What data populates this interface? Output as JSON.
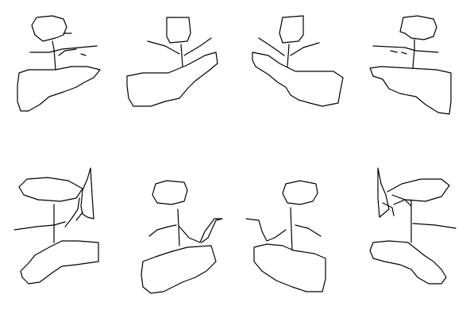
{
  "canvas": {
    "background": "#ffffff",
    "stroke_color": "#000000"
  },
  "figures": [
    {
      "id": "row1-fig1"
    },
    {
      "id": "row1-fig2"
    },
    {
      "id": "row1-fig3"
    },
    {
      "id": "row1-fig4"
    },
    {
      "id": "row2-fig1"
    },
    {
      "id": "row2-fig2"
    },
    {
      "id": "row2-fig3"
    },
    {
      "id": "row2-fig4"
    }
  ]
}
